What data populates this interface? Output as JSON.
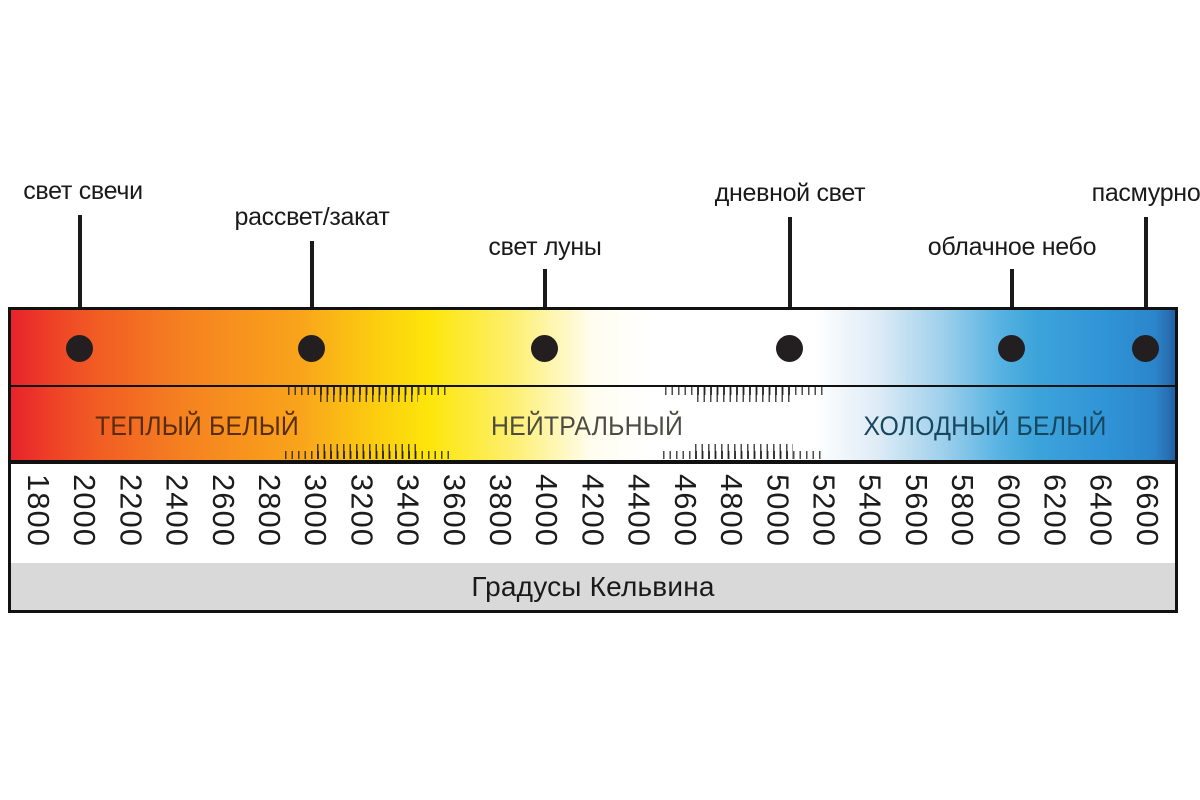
{
  "callouts": [
    {
      "label": "свет свечи",
      "approx_kelvin": 2000
    },
    {
      "label": "рассвет/закат",
      "approx_kelvin": 3000
    },
    {
      "label": "свет луны",
      "approx_kelvin": 4000
    },
    {
      "label": "дневной свет",
      "approx_kelvin": 5000
    },
    {
      "label": "облачное небо",
      "approx_kelvin": 6000
    },
    {
      "label": "пасмурно",
      "approx_kelvin": 6400
    }
  ],
  "zones": [
    {
      "label": "ТЕПЛЫЙ БЕЛЫЙ",
      "text_color": "#5a2c0e"
    },
    {
      "label": "НЕЙТРАЛЬНЫЙ",
      "text_color": "#4c4c44"
    },
    {
      "label": "ХОЛОДНЫЙ БЕЛЫЙ",
      "text_color": "#17465f"
    }
  ],
  "scale": {
    "min": 1800,
    "max": 6600,
    "step": 200,
    "values": [
      "1800",
      "2000",
      "2200",
      "2400",
      "2600",
      "2800",
      "3000",
      "3200",
      "3400",
      "3600",
      "3800",
      "4000",
      "4200",
      "4400",
      "4600",
      "4800",
      "5000",
      "5200",
      "5400",
      "5600",
      "5800",
      "6000",
      "6200",
      "6400",
      "6600"
    ]
  },
  "footer": {
    "label": "Градусы Кельвина"
  },
  "colors": {
    "warm_end": "#e7232b",
    "orange": "#f58220",
    "yellow": "#fde60a",
    "neutral_white": "#ffffff",
    "light_blue": "#9fd0ec",
    "cold_blue": "#3094d6",
    "cold_end": "#1f5ea6",
    "footer_bar": "#d9d9d9",
    "border": "#111111",
    "dot": "#231f20"
  }
}
